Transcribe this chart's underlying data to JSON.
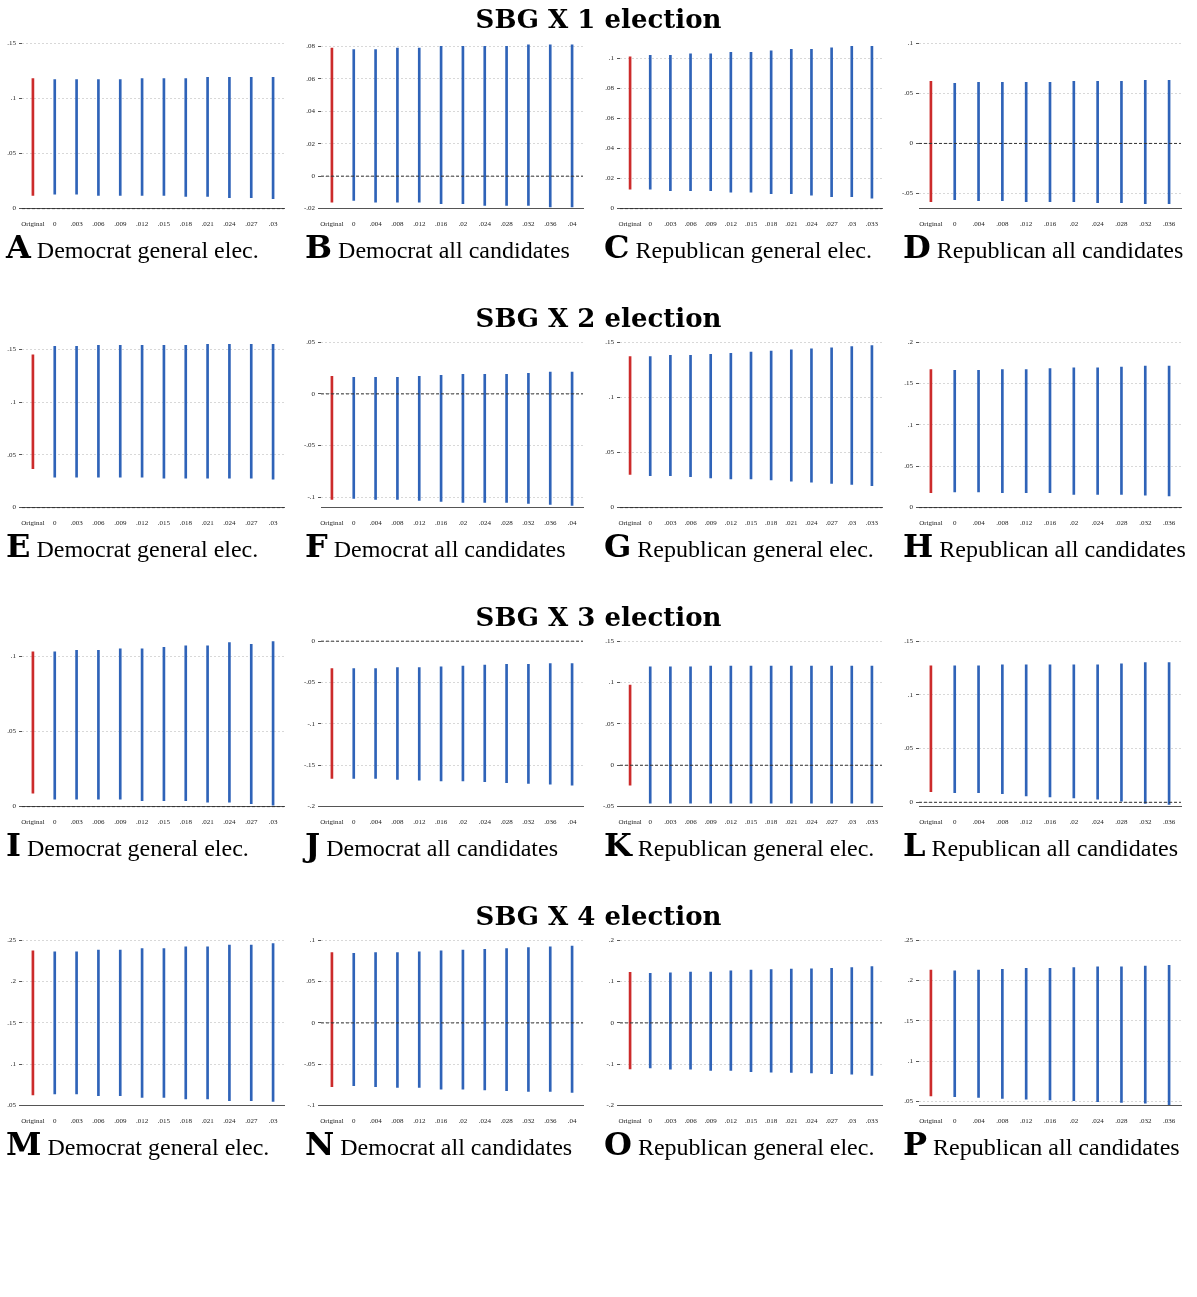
{
  "chart_data": [
    {
      "type": "bar",
      "title": "A Democrat general elec.",
      "annotations": [
        "SBG X 1 election"
      ],
      "categories": [
        "Original",
        "0",
        ".003",
        ".006",
        ".009",
        ".012",
        ".015",
        ".018",
        ".021",
        ".024",
        ".027",
        ".03"
      ],
      "base": [
        0.012,
        0.013,
        0.013,
        0.012,
        0.012,
        0.012,
        0.012,
        0.011,
        0.011,
        0.01,
        0.01,
        0.009
      ],
      "values": [
        0.106,
        0.104,
        0.104,
        0.105,
        0.105,
        0.106,
        0.106,
        0.107,
        0.108,
        0.109,
        0.109,
        0.11
      ],
      "colors": [
        "#cc2b2b",
        "#2f63b8",
        "#2f63b8",
        "#2f63b8",
        "#2f63b8",
        "#2f63b8",
        "#2f63b8",
        "#2f63b8",
        "#2f63b8",
        "#2f63b8",
        "#2f63b8",
        "#2f63b8"
      ],
      "ylim": [
        0,
        0.15
      ],
      "yticks": [
        {
          "value": 0,
          "label": "0"
        },
        {
          "value": 0.05,
          "label": ".05"
        },
        {
          "value": 0.1,
          "label": ".1"
        },
        {
          "value": 0.15,
          "label": ".15"
        }
      ],
      "grid": "y",
      "legend": false,
      "ref_lines": [
        {
          "axis": "y",
          "value": 0,
          "line_style": "dashed"
        }
      ]
    },
    {
      "type": "bar",
      "title": "B Democrat all candidates",
      "categories": [
        "Original",
        "0",
        ".004",
        ".008",
        ".012",
        ".016",
        ".02",
        ".024",
        ".028",
        ".032",
        ".036",
        ".04"
      ],
      "base": [
        -0.016,
        -0.015,
        -0.016,
        -0.016,
        -0.016,
        -0.017,
        -0.017,
        -0.018,
        -0.018,
        -0.018,
        -0.019,
        -0.019
      ],
      "values": [
        0.095,
        0.093,
        0.094,
        0.095,
        0.095,
        0.097,
        0.097,
        0.098,
        0.098,
        0.099,
        0.1,
        0.1
      ],
      "colors": [
        "#cc2b2b",
        "#2f63b8",
        "#2f63b8",
        "#2f63b8",
        "#2f63b8",
        "#2f63b8",
        "#2f63b8",
        "#2f63b8",
        "#2f63b8",
        "#2f63b8",
        "#2f63b8",
        "#2f63b8"
      ],
      "ylim": [
        -0.02,
        0.082
      ],
      "yticks": [
        {
          "value": -0.02,
          "label": "-.02"
        },
        {
          "value": 0,
          "label": "0"
        },
        {
          "value": 0.02,
          "label": ".02"
        },
        {
          "value": 0.04,
          "label": ".04"
        },
        {
          "value": 0.06,
          "label": ".06"
        },
        {
          "value": 0.08,
          "label": ".08"
        }
      ],
      "grid": "y",
      "legend": false,
      "ref_lines": [
        {
          "axis": "y",
          "value": 0,
          "line_style": "dashed"
        }
      ]
    },
    {
      "type": "bar",
      "title": "C Republican general elec.",
      "categories": [
        "Original",
        "0",
        ".003",
        ".006",
        ".009",
        ".012",
        ".015",
        ".018",
        ".021",
        ".024",
        ".027",
        ".03",
        ".033"
      ],
      "base": [
        0.013,
        0.013,
        0.012,
        0.012,
        0.012,
        0.011,
        0.011,
        0.01,
        0.01,
        0.009,
        0.008,
        0.008,
        0.007
      ],
      "values": [
        0.088,
        0.089,
        0.09,
        0.091,
        0.091,
        0.093,
        0.093,
        0.095,
        0.096,
        0.097,
        0.099,
        0.1,
        0.101
      ],
      "colors": [
        "#cc2b2b",
        "#2f63b8",
        "#2f63b8",
        "#2f63b8",
        "#2f63b8",
        "#2f63b8",
        "#2f63b8",
        "#2f63b8",
        "#2f63b8",
        "#2f63b8",
        "#2f63b8",
        "#2f63b8",
        "#2f63b8"
      ],
      "ylim": [
        0,
        0.11
      ],
      "yticks": [
        {
          "value": 0,
          "label": "0"
        },
        {
          "value": 0.02,
          "label": ".02"
        },
        {
          "value": 0.04,
          "label": ".04"
        },
        {
          "value": 0.06,
          "label": ".06"
        },
        {
          "value": 0.08,
          "label": ".08"
        },
        {
          "value": 0.1,
          "label": ".1"
        }
      ],
      "grid": "y",
      "legend": false,
      "ref_lines": [
        {
          "axis": "y",
          "value": 0,
          "line_style": "dashed"
        }
      ]
    },
    {
      "type": "bar",
      "title": "D Republican all candidates",
      "categories": [
        "Original",
        "0",
        ".004",
        ".008",
        ".012",
        ".016",
        ".02",
        ".024",
        ".028",
        ".032",
        ".036"
      ],
      "base": [
        -0.058,
        -0.056,
        -0.057,
        -0.057,
        -0.058,
        -0.058,
        -0.058,
        -0.059,
        -0.059,
        -0.06,
        -0.06
      ],
      "values": [
        0.12,
        0.116,
        0.118,
        0.118,
        0.119,
        0.119,
        0.12,
        0.121,
        0.121,
        0.123,
        0.123
      ],
      "colors": [
        "#cc2b2b",
        "#2f63b8",
        "#2f63b8",
        "#2f63b8",
        "#2f63b8",
        "#2f63b8",
        "#2f63b8",
        "#2f63b8",
        "#2f63b8",
        "#2f63b8",
        "#2f63b8"
      ],
      "ylim": [
        -0.065,
        0.1
      ],
      "yticks": [
        {
          "value": -0.05,
          "label": "-.05"
        },
        {
          "value": 0,
          "label": "0"
        },
        {
          "value": 0.05,
          "label": ".05"
        },
        {
          "value": 0.1,
          "label": ".1"
        }
      ],
      "grid": "y",
      "legend": false,
      "ref_lines": [
        {
          "axis": "y",
          "value": 0,
          "line_style": "dashed"
        }
      ]
    },
    {
      "type": "bar",
      "title": "E Democrat general elec.",
      "annotations": [
        "SBG X 2 election"
      ],
      "categories": [
        "Original",
        "0",
        ".003",
        ".006",
        ".009",
        ".012",
        ".015",
        ".018",
        ".021",
        ".024",
        ".027",
        ".03"
      ],
      "base": [
        0.037,
        0.029,
        0.029,
        0.029,
        0.029,
        0.029,
        0.028,
        0.028,
        0.028,
        0.028,
        0.028,
        0.027
      ],
      "values": [
        0.108,
        0.124,
        0.124,
        0.125,
        0.125,
        0.125,
        0.126,
        0.126,
        0.127,
        0.127,
        0.127,
        0.128
      ],
      "colors": [
        "#cc2b2b",
        "#2f63b8",
        "#2f63b8",
        "#2f63b8",
        "#2f63b8",
        "#2f63b8",
        "#2f63b8",
        "#2f63b8",
        "#2f63b8",
        "#2f63b8",
        "#2f63b8",
        "#2f63b8"
      ],
      "ylim": [
        0,
        0.157
      ],
      "yticks": [
        {
          "value": 0,
          "label": "0"
        },
        {
          "value": 0.05,
          "label": ".05"
        },
        {
          "value": 0.1,
          "label": ".1"
        },
        {
          "value": 0.15,
          "label": ".15"
        }
      ],
      "grid": "y",
      "legend": false,
      "ref_lines": [
        {
          "axis": "y",
          "value": 0,
          "line_style": "dashed"
        }
      ]
    },
    {
      "type": "bar",
      "title": "F Democrat all candidates",
      "categories": [
        "Original",
        "0",
        ".004",
        ".008",
        ".012",
        ".016",
        ".02",
        ".024",
        ".028",
        ".032",
        ".036",
        ".04"
      ],
      "base": [
        -0.102,
        -0.101,
        -0.102,
        -0.102,
        -0.103,
        -0.104,
        -0.105,
        -0.105,
        -0.105,
        -0.106,
        -0.107,
        -0.108
      ],
      "values": [
        0.119,
        0.117,
        0.118,
        0.118,
        0.12,
        0.122,
        0.124,
        0.124,
        0.124,
        0.126,
        0.128,
        0.129
      ],
      "colors": [
        "#cc2b2b",
        "#2f63b8",
        "#2f63b8",
        "#2f63b8",
        "#2f63b8",
        "#2f63b8",
        "#2f63b8",
        "#2f63b8",
        "#2f63b8",
        "#2f63b8",
        "#2f63b8",
        "#2f63b8"
      ],
      "ylim": [
        -0.11,
        0.05
      ],
      "yticks": [
        {
          "value": -0.1,
          "label": "-.1"
        },
        {
          "value": -0.05,
          "label": "-.05"
        },
        {
          "value": 0,
          "label": "0"
        },
        {
          "value": 0.05,
          "label": ".05"
        }
      ],
      "grid": "y",
      "legend": false,
      "ref_lines": [
        {
          "axis": "y",
          "value": 0,
          "line_style": "dashed"
        }
      ]
    },
    {
      "type": "bar",
      "title": "G Republican general elec.",
      "categories": [
        "Original",
        "0",
        ".003",
        ".006",
        ".009",
        ".012",
        ".015",
        ".018",
        ".021",
        ".024",
        ".027",
        ".03",
        ".033"
      ],
      "base": [
        0.03,
        0.029,
        0.029,
        0.028,
        0.027,
        0.026,
        0.026,
        0.025,
        0.024,
        0.023,
        0.022,
        0.021,
        0.02
      ],
      "values": [
        0.107,
        0.108,
        0.109,
        0.11,
        0.112,
        0.114,
        0.115,
        0.117,
        0.119,
        0.121,
        0.123,
        0.125,
        0.127
      ],
      "colors": [
        "#cc2b2b",
        "#2f63b8",
        "#2f63b8",
        "#2f63b8",
        "#2f63b8",
        "#2f63b8",
        "#2f63b8",
        "#2f63b8",
        "#2f63b8",
        "#2f63b8",
        "#2f63b8",
        "#2f63b8",
        "#2f63b8"
      ],
      "ylim": [
        0,
        0.15
      ],
      "yticks": [
        {
          "value": 0,
          "label": "0"
        },
        {
          "value": 0.05,
          "label": ".05"
        },
        {
          "value": 0.1,
          "label": ".1"
        },
        {
          "value": 0.15,
          "label": ".15"
        }
      ],
      "grid": "y",
      "legend": false,
      "ref_lines": [
        {
          "axis": "y",
          "value": 0,
          "line_style": "dashed"
        }
      ]
    },
    {
      "type": "bar",
      "title": "H Republican all candidates",
      "categories": [
        "Original",
        "0",
        ".004",
        ".008",
        ".012",
        ".016",
        ".02",
        ".024",
        ".028",
        ".032",
        ".036"
      ],
      "base": [
        0.018,
        0.019,
        0.019,
        0.018,
        0.018,
        0.018,
        0.016,
        0.016,
        0.016,
        0.015,
        0.014
      ],
      "values": [
        0.149,
        0.147,
        0.147,
        0.149,
        0.149,
        0.15,
        0.153,
        0.153,
        0.154,
        0.156,
        0.157
      ],
      "colors": [
        "#cc2b2b",
        "#2f63b8",
        "#2f63b8",
        "#2f63b8",
        "#2f63b8",
        "#2f63b8",
        "#2f63b8",
        "#2f63b8",
        "#2f63b8",
        "#2f63b8",
        "#2f63b8"
      ],
      "ylim": [
        0,
        0.2
      ],
      "yticks": [
        {
          "value": 0,
          "label": "0"
        },
        {
          "value": 0.05,
          "label": ".05"
        },
        {
          "value": 0.1,
          "label": ".1"
        },
        {
          "value": 0.15,
          "label": ".15"
        },
        {
          "value": 0.2,
          "label": ".2"
        }
      ],
      "grid": "y",
      "legend": false,
      "ref_lines": [
        {
          "axis": "y",
          "value": 0,
          "line_style": "dashed"
        }
      ]
    },
    {
      "type": "bar",
      "title": "I Democrat general elec.",
      "annotations": [
        "SBG X 3 election"
      ],
      "categories": [
        "Original",
        "0",
        ".003",
        ".006",
        ".009",
        ".012",
        ".015",
        ".018",
        ".021",
        ".024",
        ".027",
        ".03"
      ],
      "base": [
        0.009,
        0.005,
        0.005,
        0.005,
        0.005,
        0.004,
        0.004,
        0.004,
        0.003,
        0.003,
        0.002,
        0.001
      ],
      "values": [
        0.094,
        0.098,
        0.099,
        0.099,
        0.1,
        0.101,
        0.102,
        0.103,
        0.104,
        0.106,
        0.106,
        0.109
      ],
      "colors": [
        "#cc2b2b",
        "#2f63b8",
        "#2f63b8",
        "#2f63b8",
        "#2f63b8",
        "#2f63b8",
        "#2f63b8",
        "#2f63b8",
        "#2f63b8",
        "#2f63b8",
        "#2f63b8",
        "#2f63b8"
      ],
      "ylim": [
        0,
        0.11
      ],
      "yticks": [
        {
          "value": 0,
          "label": "0"
        },
        {
          "value": 0.05,
          "label": ".05"
        },
        {
          "value": 0.1,
          "label": ".1"
        }
      ],
      "grid": "y",
      "legend": false,
      "ref_lines": [
        {
          "axis": "y",
          "value": 0,
          "line_style": "dashed"
        }
      ]
    },
    {
      "type": "bar",
      "title": "J Democrat all candidates",
      "categories": [
        "Original",
        "0",
        ".004",
        ".008",
        ".012",
        ".016",
        ".02",
        ".024",
        ".028",
        ".032",
        ".036",
        ".04"
      ],
      "base": [
        -0.166,
        -0.166,
        -0.166,
        -0.167,
        -0.168,
        -0.169,
        -0.169,
        -0.17,
        -0.171,
        -0.172,
        -0.173,
        -0.174
      ],
      "values": [
        0.133,
        0.133,
        0.133,
        0.135,
        0.136,
        0.138,
        0.139,
        0.141,
        0.143,
        0.144,
        0.146,
        0.147
      ],
      "colors": [
        "#cc2b2b",
        "#2f63b8",
        "#2f63b8",
        "#2f63b8",
        "#2f63b8",
        "#2f63b8",
        "#2f63b8",
        "#2f63b8",
        "#2f63b8",
        "#2f63b8",
        "#2f63b8",
        "#2f63b8"
      ],
      "ylim": [
        -0.2,
        0
      ],
      "yticks": [
        {
          "value": -0.2,
          "label": "-.2"
        },
        {
          "value": -0.15,
          "label": "-.15"
        },
        {
          "value": -0.1,
          "label": "-.1"
        },
        {
          "value": -0.05,
          "label": "-.05"
        },
        {
          "value": 0,
          "label": "0"
        }
      ],
      "grid": "y",
      "legend": false,
      "ref_lines": [
        {
          "axis": "y",
          "value": 0,
          "line_style": "dashed"
        }
      ]
    },
    {
      "type": "bar",
      "title": "K Republican general elec.",
      "categories": [
        "Original",
        "0",
        ".003",
        ".006",
        ".009",
        ".012",
        ".015",
        ".018",
        ".021",
        ".024",
        ".027",
        ".03",
        ".033"
      ],
      "base": [
        -0.024,
        -0.046,
        -0.046,
        -0.046,
        -0.046,
        -0.046,
        -0.046,
        -0.046,
        -0.046,
        -0.046,
        -0.046,
        -0.046,
        -0.046
      ],
      "values": [
        0.121,
        0.165,
        0.165,
        0.165,
        0.166,
        0.166,
        0.166,
        0.166,
        0.166,
        0.166,
        0.166,
        0.166,
        0.166
      ],
      "colors": [
        "#cc2b2b",
        "#2f63b8",
        "#2f63b8",
        "#2f63b8",
        "#2f63b8",
        "#2f63b8",
        "#2f63b8",
        "#2f63b8",
        "#2f63b8",
        "#2f63b8",
        "#2f63b8",
        "#2f63b8",
        "#2f63b8"
      ],
      "ylim": [
        -0.05,
        0.15
      ],
      "yticks": [
        {
          "value": -0.05,
          "label": "-.05"
        },
        {
          "value": 0,
          "label": "0"
        },
        {
          "value": 0.05,
          "label": ".05"
        },
        {
          "value": 0.1,
          "label": ".1"
        },
        {
          "value": 0.15,
          "label": ".15"
        }
      ],
      "grid": "y",
      "legend": false,
      "ref_lines": [
        {
          "axis": "y",
          "value": 0,
          "line_style": "dashed"
        }
      ]
    },
    {
      "type": "bar",
      "title": "L Republican all candidates",
      "categories": [
        "Original",
        "0",
        ".004",
        ".008",
        ".012",
        ".016",
        ".02",
        ".024",
        ".028",
        ".032",
        ".036"
      ],
      "base": [
        0.01,
        0.009,
        0.009,
        0.008,
        0.006,
        0.005,
        0.004,
        0.003,
        0.001,
        -0.001,
        -0.002
      ],
      "values": [
        0.117,
        0.118,
        0.118,
        0.12,
        0.122,
        0.123,
        0.124,
        0.125,
        0.128,
        0.131,
        0.132
      ],
      "colors": [
        "#cc2b2b",
        "#2f63b8",
        "#2f63b8",
        "#2f63b8",
        "#2f63b8",
        "#2f63b8",
        "#2f63b8",
        "#2f63b8",
        "#2f63b8",
        "#2f63b8",
        "#2f63b8"
      ],
      "ylim": [
        -0.004,
        0.15
      ],
      "yticks": [
        {
          "value": 0,
          "label": "0"
        },
        {
          "value": 0.05,
          "label": ".05"
        },
        {
          "value": 0.1,
          "label": ".1"
        },
        {
          "value": 0.15,
          "label": ".15"
        }
      ],
      "grid": "y",
      "legend": false,
      "ref_lines": [
        {
          "axis": "y",
          "value": 0,
          "line_style": "dashed"
        }
      ]
    },
    {
      "type": "bar",
      "title": "M Democrat general elec.",
      "annotations": [
        "SBG X 4 election"
      ],
      "categories": [
        "Original",
        "0",
        ".003",
        ".006",
        ".009",
        ".012",
        ".015",
        ".018",
        ".021",
        ".024",
        ".027",
        ".03"
      ],
      "base": [
        0.063,
        0.064,
        0.064,
        0.062,
        0.062,
        0.06,
        0.06,
        0.058,
        0.058,
        0.056,
        0.056,
        0.055
      ],
      "values": [
        0.174,
        0.172,
        0.172,
        0.176,
        0.176,
        0.18,
        0.18,
        0.184,
        0.184,
        0.188,
        0.188,
        0.191
      ],
      "colors": [
        "#cc2b2b",
        "#2f63b8",
        "#2f63b8",
        "#2f63b8",
        "#2f63b8",
        "#2f63b8",
        "#2f63b8",
        "#2f63b8",
        "#2f63b8",
        "#2f63b8",
        "#2f63b8",
        "#2f63b8"
      ],
      "ylim": [
        0.05,
        0.25
      ],
      "yticks": [
        {
          "value": 0.05,
          "label": ".05"
        },
        {
          "value": 0.1,
          "label": ".1"
        },
        {
          "value": 0.15,
          "label": ".15"
        },
        {
          "value": 0.2,
          "label": ".2"
        },
        {
          "value": 0.25,
          "label": ".25"
        }
      ],
      "grid": "y",
      "legend": false
    },
    {
      "type": "bar",
      "title": "N Democrat all candidates",
      "categories": [
        "Original",
        "0",
        ".004",
        ".008",
        ".012",
        ".016",
        ".02",
        ".024",
        ".028",
        ".032",
        ".036",
        ".04"
      ],
      "base": [
        -0.077,
        -0.076,
        -0.077,
        -0.078,
        -0.078,
        -0.08,
        -0.08,
        -0.081,
        -0.082,
        -0.083,
        -0.083,
        -0.084
      ],
      "values": [
        0.162,
        0.16,
        0.162,
        0.163,
        0.164,
        0.167,
        0.168,
        0.17,
        0.172,
        0.174,
        0.175,
        0.177
      ],
      "colors": [
        "#cc2b2b",
        "#2f63b8",
        "#2f63b8",
        "#2f63b8",
        "#2f63b8",
        "#2f63b8",
        "#2f63b8",
        "#2f63b8",
        "#2f63b8",
        "#2f63b8",
        "#2f63b8",
        "#2f63b8"
      ],
      "ylim": [
        -0.1,
        0.1
      ],
      "yticks": [
        {
          "value": -0.1,
          "label": "-.1"
        },
        {
          "value": -0.05,
          "label": "-.05"
        },
        {
          "value": 0,
          "label": "0"
        },
        {
          "value": 0.05,
          "label": ".05"
        },
        {
          "value": 0.1,
          "label": ".1"
        }
      ],
      "grid": "y",
      "legend": false,
      "ref_lines": [
        {
          "axis": "y",
          "value": 0,
          "line_style": "dashed"
        }
      ]
    },
    {
      "type": "bar",
      "title": "O Republican general elec.",
      "categories": [
        "Original",
        "0",
        ".003",
        ".006",
        ".009",
        ".012",
        ".015",
        ".018",
        ".021",
        ".024",
        ".027",
        ".03",
        ".033"
      ],
      "base": [
        -0.111,
        -0.109,
        -0.112,
        -0.112,
        -0.115,
        -0.115,
        -0.118,
        -0.119,
        -0.12,
        -0.121,
        -0.123,
        -0.124,
        -0.127
      ],
      "values": [
        0.233,
        0.229,
        0.233,
        0.235,
        0.238,
        0.241,
        0.246,
        0.248,
        0.25,
        0.252,
        0.255,
        0.258,
        0.263
      ],
      "colors": [
        "#cc2b2b",
        "#2f63b8",
        "#2f63b8",
        "#2f63b8",
        "#2f63b8",
        "#2f63b8",
        "#2f63b8",
        "#2f63b8",
        "#2f63b8",
        "#2f63b8",
        "#2f63b8",
        "#2f63b8",
        "#2f63b8"
      ],
      "ylim": [
        -0.2,
        0.2
      ],
      "yticks": [
        {
          "value": -0.2,
          "label": "-.2"
        },
        {
          "value": -0.1,
          "label": "-.1"
        },
        {
          "value": 0,
          "label": "0"
        },
        {
          "value": 0.1,
          "label": ".1"
        },
        {
          "value": 0.2,
          "label": ".2"
        }
      ],
      "grid": "y",
      "legend": false,
      "ref_lines": [
        {
          "axis": "y",
          "value": 0,
          "line_style": "dashed"
        }
      ]
    },
    {
      "type": "bar",
      "title": "P Republican all candidates",
      "categories": [
        "Original",
        "0",
        ".004",
        ".008",
        ".012",
        ".016",
        ".02",
        ".024",
        ".028",
        ".032",
        ".036"
      ],
      "base": [
        0.057,
        0.056,
        0.055,
        0.054,
        0.053,
        0.052,
        0.051,
        0.05,
        0.049,
        0.048,
        0.046
      ],
      "values": [
        0.156,
        0.156,
        0.158,
        0.16,
        0.162,
        0.163,
        0.165,
        0.167,
        0.168,
        0.17,
        0.173
      ],
      "colors": [
        "#cc2b2b",
        "#2f63b8",
        "#2f63b8",
        "#2f63b8",
        "#2f63b8",
        "#2f63b8",
        "#2f63b8",
        "#2f63b8",
        "#2f63b8",
        "#2f63b8",
        "#2f63b8"
      ],
      "ylim": [
        0.045,
        0.25
      ],
      "yticks": [
        {
          "value": 0.05,
          "label": ".05"
        },
        {
          "value": 0.1,
          "label": ".1"
        },
        {
          "value": 0.15,
          "label": ".15"
        },
        {
          "value": 0.2,
          "label": ".2"
        },
        {
          "value": 0.25,
          "label": ".25"
        }
      ],
      "grid": "y",
      "legend": false
    }
  ]
}
